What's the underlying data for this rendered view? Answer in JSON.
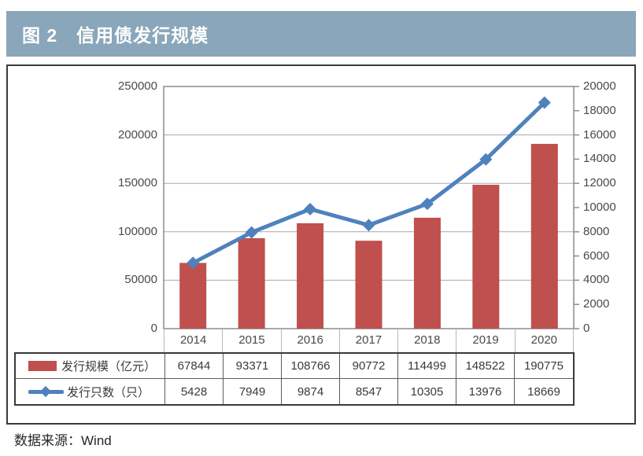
{
  "header": {
    "title": "图 2　信用债发行规模"
  },
  "footer": {
    "source": "数据来源：Wind"
  },
  "colors": {
    "title_bar_bg": "#8aa6ba",
    "bar_series": "#bf504d",
    "line_series": "#4f81bd",
    "gridline": "#a8a8a8",
    "plot_border": "#8c8c8c"
  },
  "chart_data": {
    "type": "bar",
    "subtype": "combo-bar-line-with-data-table",
    "title": "信用债发行规模",
    "categories": [
      "2014",
      "2015",
      "2016",
      "2017",
      "2018",
      "2019",
      "2020"
    ],
    "series": [
      {
        "name": "发行规模（亿元）",
        "type": "bar",
        "axis": "left",
        "color": "#bf504d",
        "values": [
          67844,
          93371,
          108766,
          90772,
          114499,
          148522,
          190775
        ]
      },
      {
        "name": "发行只数（只）",
        "type": "line",
        "axis": "right",
        "color": "#4f81bd",
        "values": [
          5428,
          7949,
          9874,
          8547,
          10305,
          13976,
          18669
        ]
      }
    ],
    "left_axis": {
      "min": 0,
      "max": 250000,
      "step": 50000,
      "ticks": [
        "250000",
        "200000",
        "150000",
        "100000",
        "50000",
        "0"
      ]
    },
    "right_axis": {
      "min": 0,
      "max": 20000,
      "step": 2000,
      "ticks": [
        "20000",
        "18000",
        "16000",
        "14000",
        "12000",
        "10000",
        "8000",
        "6000",
        "4000",
        "2000",
        "0"
      ]
    },
    "grid": true,
    "legend_position": "table-left"
  }
}
